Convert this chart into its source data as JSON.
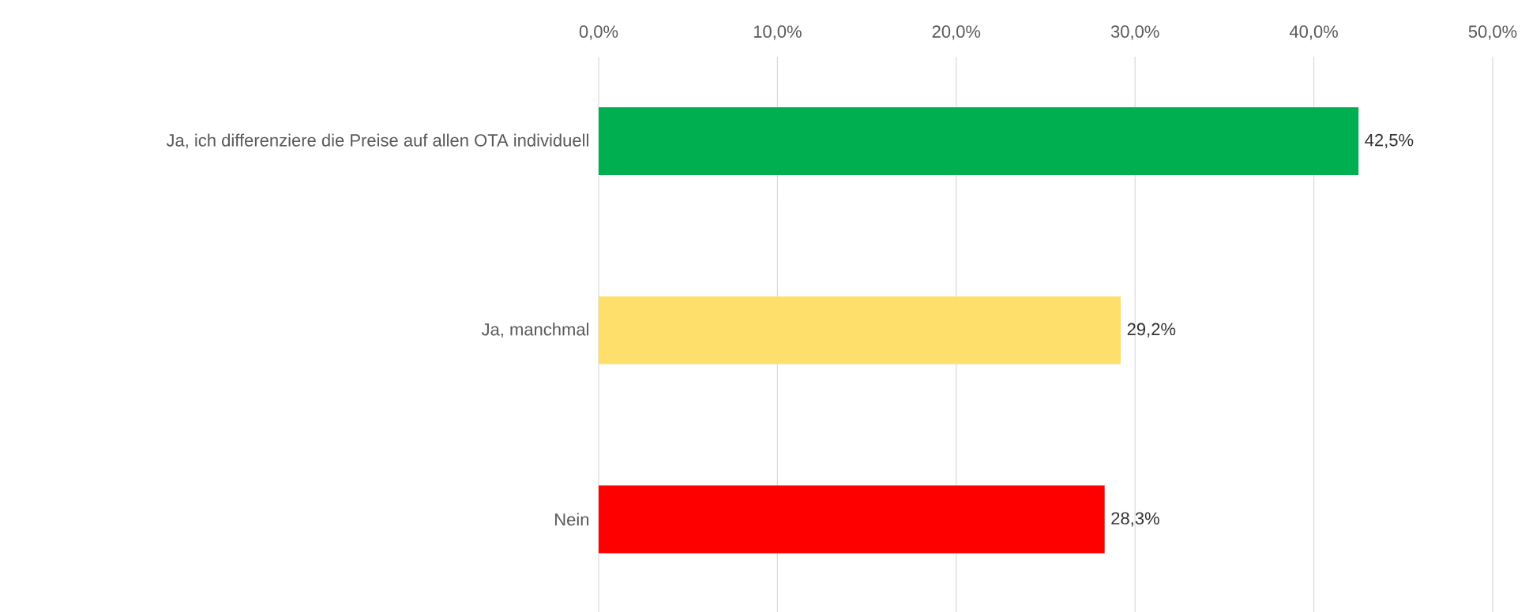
{
  "chart_data": {
    "type": "bar",
    "orientation": "horizontal",
    "categories": [
      "Ja, ich differenziere die Preise auf allen OTA individuell",
      "Ja, manchmal",
      "Nein"
    ],
    "values": [
      42.5,
      29.2,
      28.3
    ],
    "colors": [
      "#00b050",
      "#ffdf6b",
      "#ff0000"
    ],
    "value_labels": [
      "42,5%",
      "29,2%",
      "28,3%"
    ],
    "xlim": [
      0,
      50
    ],
    "xticks": [
      {
        "value": 0,
        "label": "0,0%"
      },
      {
        "value": 10,
        "label": "10,0%"
      },
      {
        "value": 20,
        "label": "20,0%"
      },
      {
        "value": 30,
        "label": "30,0%"
      },
      {
        "value": 40,
        "label": "40,0%"
      },
      {
        "value": 50,
        "label": "50,0%"
      }
    ],
    "grid": "x"
  }
}
